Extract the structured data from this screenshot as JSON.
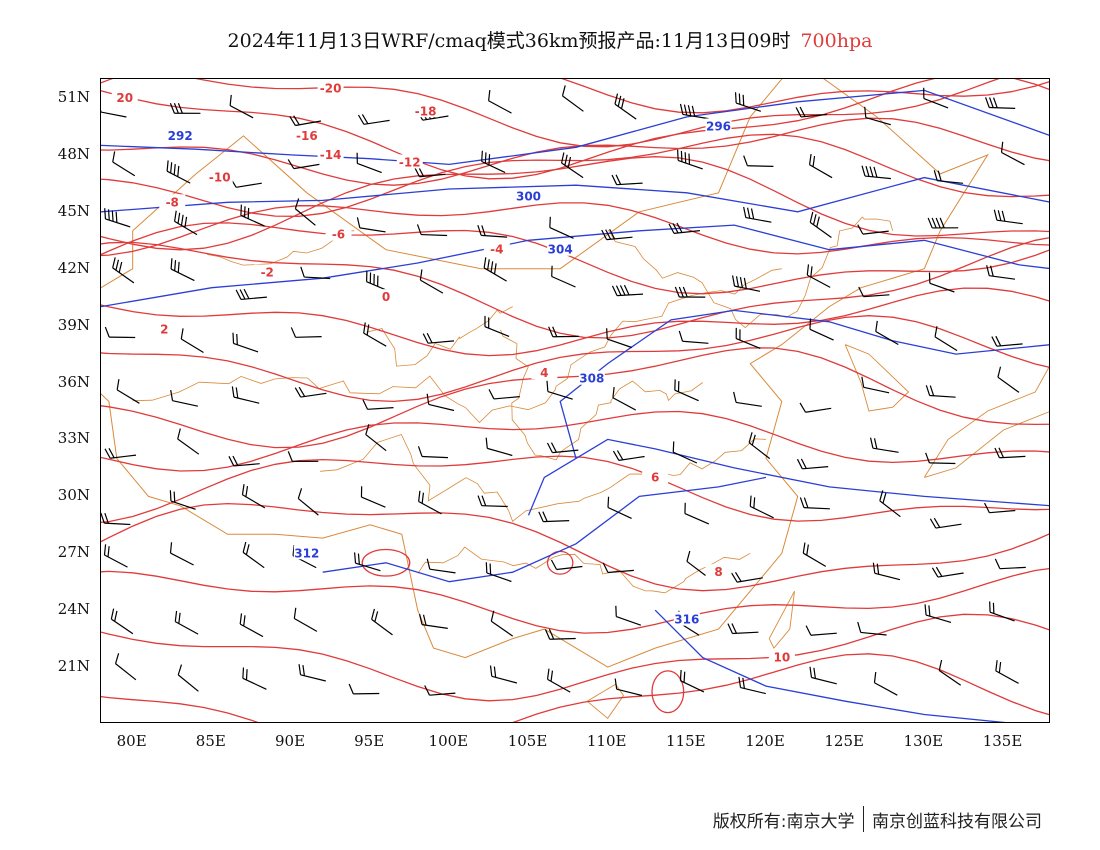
{
  "title": {
    "main": "2024年11月13日WRF/cmaq模式36km预报产品:11月13日09时",
    "level": "700hpa"
  },
  "axes": {
    "lat_labels": [
      "51N",
      "48N",
      "45N",
      "42N",
      "39N",
      "36N",
      "33N",
      "30N",
      "27N",
      "24N",
      "21N"
    ],
    "lon_labels": [
      "80E",
      "85E",
      "90E",
      "95E",
      "100E",
      "105E",
      "110E",
      "115E",
      "120E",
      "125E",
      "130E",
      "135E"
    ]
  },
  "map": {
    "extent": {
      "lon": [
        78,
        138
      ],
      "lat": [
        18,
        52
      ]
    },
    "temperature_contours": {
      "color": "#e03b3b",
      "labels": [
        "20",
        "-20",
        "-18",
        "-16",
        "-14",
        "-12",
        "-10",
        "-8",
        "-6",
        "-4",
        "-2",
        "0",
        "2",
        "4",
        "6",
        "8",
        "10"
      ]
    },
    "height_contours": {
      "color": "#2b3fd6",
      "labels": [
        "292",
        "296",
        "300",
        "304",
        "308",
        "312",
        "316"
      ]
    },
    "borders_color": "#d98a3a",
    "wind_barbs_color": "#000000"
  },
  "footer": {
    "copyright": "版权所有:南京大学",
    "company": "南京创蓝科技有限公司"
  }
}
